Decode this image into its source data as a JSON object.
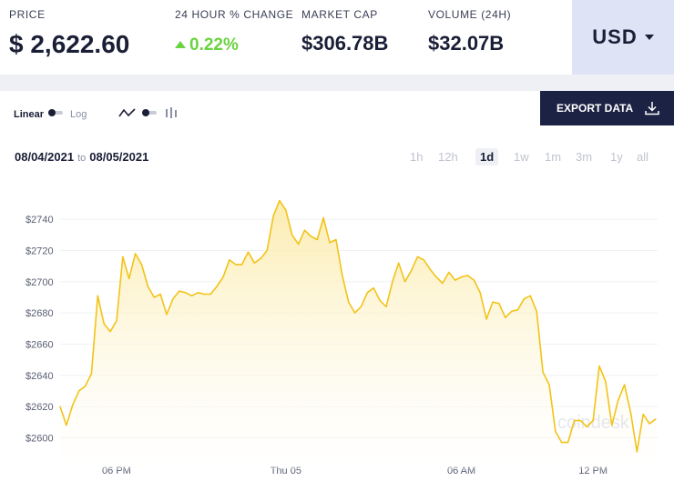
{
  "stats": {
    "price_label": "PRICE",
    "price_value": "$ 2,622.60",
    "change_label": "24 HOUR % CHANGE",
    "change_value": "0.22%",
    "marketcap_label": "MARKET CAP",
    "marketcap_value": "$306.78B",
    "volume_label": "VOLUME (24H)",
    "volume_value": "$32.07B"
  },
  "currency": {
    "label": "USD"
  },
  "controls": {
    "linear_label": "Linear",
    "log_label": "Log",
    "export_label": "EXPORT DATA",
    "date_from": "08/04/2021",
    "date_to_word": "to",
    "date_to": "08/05/2021",
    "ranges": [
      "1h",
      "12h",
      "1d",
      "1w",
      "1m",
      "3m",
      "1y",
      "all"
    ],
    "active_range": "1d"
  },
  "colors": {
    "line": "#f2c318",
    "fill_top": "#fbeaa6",
    "fill_bottom": "#ffffff",
    "accent": "#1c2244",
    "up": "#6ad33f"
  },
  "watermark": "coindesk",
  "chart_data": {
    "type": "area",
    "xlabel": "",
    "ylabel": "",
    "ylim": [
      2588,
      2757
    ],
    "y_ticks": [
      "$2600",
      "$2620",
      "$2640",
      "$2660",
      "$2680",
      "$2700",
      "$2720",
      "$2740"
    ],
    "x_tick_labels": [
      "06 PM",
      "Thu 05",
      "06 AM",
      "12 PM"
    ],
    "series": [
      {
        "values": [
          2620,
          2608,
          2621,
          2630,
          2633,
          2641,
          2691,
          2673,
          2668,
          2675,
          2716,
          2702,
          2718,
          2711,
          2697,
          2690,
          2692,
          2679,
          2689,
          2694,
          2693,
          2691,
          2693,
          2692,
          2692,
          2697,
          2703,
          2714,
          2711,
          2711,
          2719,
          2712,
          2715,
          2720,
          2742,
          2752,
          2746,
          2730,
          2724,
          2733,
          2729,
          2727,
          2741,
          2725,
          2727,
          2704,
          2687,
          2680,
          2684,
          2693,
          2696,
          2688,
          2684,
          2700,
          2712,
          2700,
          2707,
          2716,
          2714,
          2708,
          2703,
          2699,
          2706,
          2701,
          2703,
          2704,
          2701,
          2693,
          2676,
          2687,
          2686,
          2677,
          2681,
          2682,
          2689,
          2691,
          2681,
          2642,
          2634,
          2604,
          2597,
          2597,
          2611,
          2611,
          2607,
          2611,
          2646,
          2636,
          2608,
          2624,
          2634,
          2616,
          2591,
          2615,
          2609,
          2612
        ]
      }
    ]
  }
}
